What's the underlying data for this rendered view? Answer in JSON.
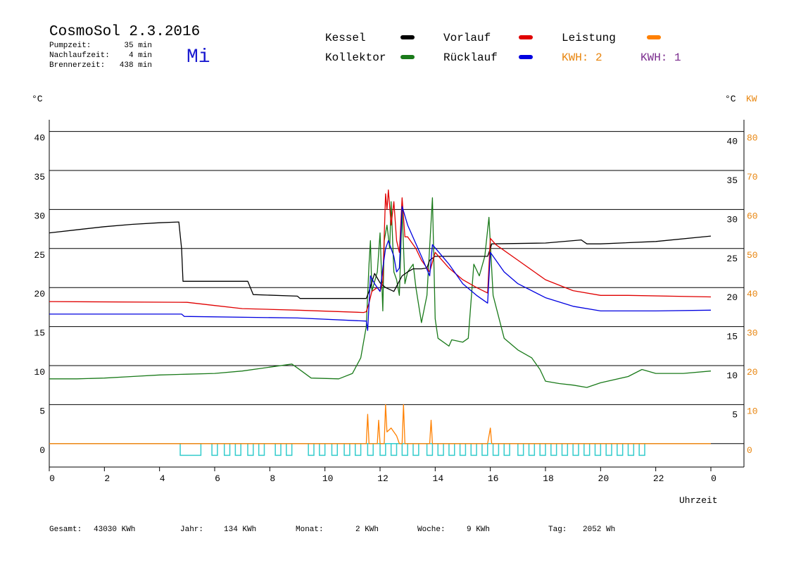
{
  "chart_data": {
    "type": "line",
    "title": "CosmoSol 2.3.2016",
    "weekday": "Mi",
    "stats": [
      {
        "label": "Pumpzeit:",
        "value": "35 min"
      },
      {
        "label": "Nachlaufzeit:",
        "value": "4 min"
      },
      {
        "label": "Brennerzeit:",
        "value": "438 min"
      }
    ],
    "y_unit": "°C",
    "y_right_unit": "°C",
    "y2_unit": "KW",
    "x_label": "Uhrzeit",
    "kwh_labels": [
      {
        "text": "KWH: 2",
        "color": "#e8850e"
      },
      {
        "text": "KWH: 1",
        "color": "#7b2c8e"
      }
    ],
    "xlim": [
      0,
      25.2
    ],
    "xticks": [
      0,
      2,
      4,
      6,
      8,
      10,
      12,
      14,
      16,
      18,
      20,
      22,
      {
        "value": 24,
        "label": "0"
      }
    ],
    "ylim": [
      -3,
      41.5
    ],
    "yticks": [
      0,
      5,
      10,
      15,
      20,
      25,
      30,
      35,
      40
    ],
    "y_right_ticks": [
      5,
      10,
      15,
      20,
      25,
      30,
      35,
      40
    ],
    "y2lim": [
      -6,
      83
    ],
    "y2ticks": [
      0,
      10,
      20,
      30,
      40,
      50,
      60,
      70,
      80
    ],
    "grid": true,
    "series": [
      {
        "name": "Kessel",
        "color": "#000000",
        "x": [
          0,
          1,
          2,
          3,
          4,
          4.7,
          4.8,
          4.85,
          7.2,
          7.4,
          9,
          9.1,
          11.5,
          11.6,
          11.8,
          12.0,
          12.2,
          12.5,
          12.8,
          13,
          13.2,
          13.5,
          13.7,
          13.8,
          14,
          15.9,
          16,
          16.05,
          18,
          19.3,
          19.5,
          20,
          22,
          24
        ],
        "values": [
          27,
          27.4,
          27.8,
          28.1,
          28.3,
          28.4,
          25,
          20.8,
          20.8,
          19.1,
          18.9,
          18.6,
          18.6,
          19.5,
          21.8,
          20.6,
          20,
          19.5,
          21.5,
          22,
          22.4,
          22.4,
          22.5,
          23.5,
          24,
          24,
          25,
          25.6,
          25.7,
          26.1,
          25.6,
          25.6,
          25.9,
          26.6
        ]
      },
      {
        "name": "Vorlauf",
        "color": "#e00000",
        "x": [
          0,
          5,
          6,
          7,
          9,
          11.4,
          11.5,
          11.6,
          11.7,
          11.9,
          12,
          12.1,
          12.2,
          12.25,
          12.3,
          12.4,
          12.5,
          12.6,
          12.7,
          12.8,
          12.9,
          13,
          13.3,
          13.5,
          13.8,
          14,
          14.5,
          15,
          15.5,
          15.9,
          16,
          16.2,
          17,
          18,
          19,
          20,
          21,
          24
        ],
        "values": [
          18.2,
          18.1,
          17.7,
          17.3,
          17.1,
          16.8,
          16.9,
          18,
          19.5,
          20,
          19.5,
          20.8,
          32,
          30,
          32.5,
          28,
          31,
          26,
          24.5,
          31.5,
          26.5,
          26.5,
          25,
          23.5,
          22,
          24.5,
          22.5,
          21,
          20,
          19.3,
          26.3,
          25.5,
          23.5,
          21,
          19.6,
          19,
          19,
          18.8
        ]
      },
      {
        "name": "Leistung",
        "color": "#ff8000",
        "axis": "y2",
        "x": [
          0,
          11.5,
          11.55,
          11.6,
          11.9,
          11.95,
          12.0,
          12.15,
          12.2,
          12.25,
          12.4,
          12.6,
          12.7,
          12.8,
          12.85,
          12.9,
          13.8,
          13.85,
          13.9,
          15.9,
          16,
          16.05,
          24
        ],
        "values": [
          0,
          0,
          7.5,
          0,
          0,
          6,
          0,
          0,
          10,
          3,
          4,
          2,
          0,
          0,
          10,
          0,
          0,
          6,
          0,
          0,
          4,
          0,
          0
        ]
      },
      {
        "name": "Kollektor",
        "color": "#1a7a1a",
        "x": [
          0,
          1,
          2,
          3,
          4,
          5,
          6,
          7,
          8,
          8.8,
          9,
          9.5,
          10.5,
          11,
          11.3,
          11.5,
          11.6,
          11.65,
          11.7,
          11.9,
          12,
          12.1,
          12.15,
          12.25,
          12.35,
          12.4,
          12.5,
          12.6,
          12.7,
          12.8,
          12.9,
          13,
          13.2,
          13.3,
          13.5,
          13.7,
          13.9,
          14,
          14.1,
          14.5,
          14.6,
          15,
          15.2,
          15.4,
          15.6,
          15.8,
          15.95,
          16.1,
          16.5,
          17,
          17.5,
          17.8,
          18,
          18.5,
          19,
          19.5,
          20,
          21,
          21.5,
          22,
          23,
          24
        ],
        "values": [
          8.3,
          8.3,
          8.4,
          8.6,
          8.8,
          8.9,
          9.0,
          9.3,
          9.8,
          10.2,
          9.7,
          8.4,
          8.3,
          9.0,
          11,
          15,
          23,
          26,
          19.5,
          22,
          27,
          17,
          26,
          28,
          25,
          31,
          22,
          21,
          19,
          30,
          20.5,
          22,
          23,
          20,
          15.5,
          19,
          31.5,
          16,
          13.5,
          12.5,
          13.3,
          13,
          13.5,
          23,
          21.5,
          24,
          29,
          19,
          13.5,
          12,
          11,
          9.5,
          8,
          7.7,
          7.5,
          7.2,
          7.8,
          8.6,
          9.5,
          9,
          9,
          9.3
        ]
      },
      {
        "name": "Rücklauf",
        "color": "#0000e0",
        "x": [
          0,
          4.8,
          4.9,
          9,
          11.5,
          11.55,
          11.65,
          11.8,
          12,
          12.1,
          12.2,
          12.3,
          12.5,
          12.6,
          12.7,
          12.8,
          13,
          13.5,
          13.8,
          13.9,
          14.5,
          15,
          15.5,
          15.9,
          16,
          16.5,
          17,
          18,
          19,
          20,
          22,
          24
        ],
        "values": [
          16.6,
          16.6,
          16.3,
          16.1,
          15.7,
          14.5,
          21.5,
          20.5,
          19.5,
          22.5,
          25,
          26,
          24,
          22,
          22.5,
          30.4,
          28,
          24,
          21.5,
          25.5,
          23,
          20.5,
          19,
          18,
          24.5,
          22,
          20.5,
          18.7,
          17.6,
          17,
          17,
          17.1
        ]
      }
    ],
    "pump": {
      "color": "#33cccc",
      "level": -1.5,
      "intervals": [
        [
          4.75,
          5.5
        ],
        [
          5.9,
          6.1
        ],
        [
          6.35,
          6.55
        ],
        [
          6.75,
          6.95
        ],
        [
          7.2,
          7.4
        ],
        [
          7.6,
          7.8
        ],
        [
          8.2,
          8.4
        ],
        [
          8.6,
          8.8
        ],
        [
          9.4,
          9.6
        ],
        [
          9.8,
          10.0
        ],
        [
          10.25,
          10.45
        ],
        [
          10.7,
          10.9
        ],
        [
          11.1,
          11.3
        ],
        [
          11.55,
          11.75
        ],
        [
          12.0,
          12.2
        ],
        [
          12.4,
          12.6
        ],
        [
          12.8,
          13.0
        ],
        [
          13.2,
          13.4
        ],
        [
          13.7,
          13.9
        ],
        [
          14.1,
          14.3
        ],
        [
          14.5,
          14.7
        ],
        [
          14.9,
          15.1
        ],
        [
          15.3,
          15.5
        ],
        [
          15.7,
          15.9
        ],
        [
          16.1,
          16.3
        ],
        [
          16.5,
          16.7
        ],
        [
          17.0,
          17.2
        ],
        [
          17.4,
          17.6
        ],
        [
          17.8,
          18.0
        ],
        [
          18.2,
          18.4
        ],
        [
          18.6,
          18.8
        ],
        [
          19.0,
          19.2
        ],
        [
          19.4,
          19.6
        ],
        [
          19.8,
          20.0
        ],
        [
          20.2,
          20.4
        ],
        [
          20.6,
          20.8
        ],
        [
          21.0,
          21.2
        ],
        [
          21.4,
          21.6
        ]
      ]
    },
    "footer": [
      {
        "label": "Gesamt:",
        "value": "43030 KWh"
      },
      {
        "label": "Jahr:",
        "value": "134 KWh"
      },
      {
        "label": "Monat:",
        "value": "2 KWh"
      },
      {
        "label": "Woche:",
        "value": "9 KWh"
      },
      {
        "label": "Tag:",
        "value": "2052 Wh"
      }
    ]
  }
}
